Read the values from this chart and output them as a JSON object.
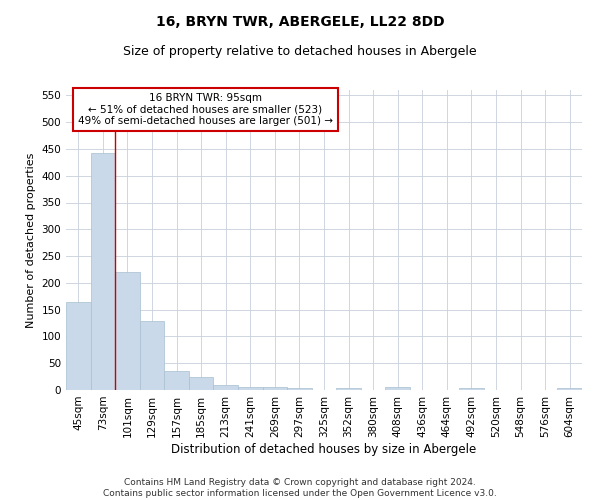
{
  "title": "16, BRYN TWR, ABERGELE, LL22 8DD",
  "subtitle": "Size of property relative to detached houses in Abergele",
  "xlabel": "Distribution of detached houses by size in Abergele",
  "ylabel": "Number of detached properties",
  "bar_color": "#c9d9e9",
  "bar_edge_color": "#a8bfd0",
  "grid_color": "#c8d0dc",
  "background_color": "#ffffff",
  "categories": [
    "45sqm",
    "73sqm",
    "101sqm",
    "129sqm",
    "157sqm",
    "185sqm",
    "213sqm",
    "241sqm",
    "269sqm",
    "297sqm",
    "325sqm",
    "352sqm",
    "380sqm",
    "408sqm",
    "436sqm",
    "464sqm",
    "492sqm",
    "520sqm",
    "548sqm",
    "576sqm",
    "604sqm"
  ],
  "values": [
    165,
    443,
    220,
    128,
    36,
    25,
    10,
    5,
    5,
    3,
    0,
    4,
    0,
    5,
    0,
    0,
    4,
    0,
    0,
    0,
    4
  ],
  "ylim": [
    0,
    560
  ],
  "yticks": [
    0,
    50,
    100,
    150,
    200,
    250,
    300,
    350,
    400,
    450,
    500,
    550
  ],
  "property_line_x": 1.5,
  "annotation_line1": "16 BRYN TWR: 95sqm",
  "annotation_line2": "← 51% of detached houses are smaller (523)",
  "annotation_line3": "49% of semi-detached houses are larger (501) →",
  "annotation_box_color": "#ffffff",
  "annotation_border_color": "#cc0000",
  "footer_line1": "Contains HM Land Registry data © Crown copyright and database right 2024.",
  "footer_line2": "Contains public sector information licensed under the Open Government Licence v3.0.",
  "title_fontsize": 10,
  "subtitle_fontsize": 9,
  "tick_fontsize": 7.5,
  "ylabel_fontsize": 8,
  "xlabel_fontsize": 8.5,
  "annotation_fontsize": 7.5,
  "footer_fontsize": 6.5
}
